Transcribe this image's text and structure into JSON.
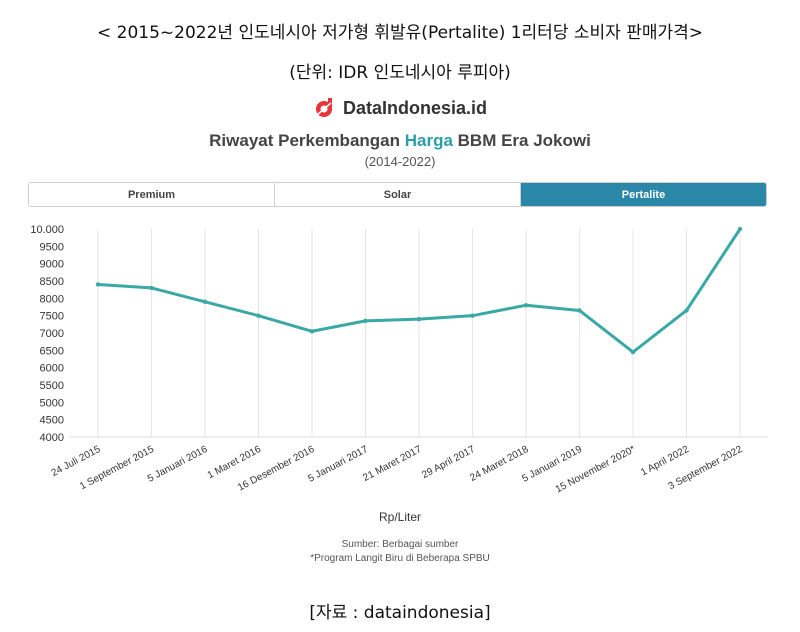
{
  "header": {
    "title": "< 2015~2022년 인도네시아 저가형 휘발유(Pertalite) 1리터당 소비자 판매가격>",
    "unit": "(단위: IDR 인도네시아 루피아)"
  },
  "brand": {
    "name": "DataIndonesia.id",
    "logo_icon": "dataindonesia-logo-icon",
    "color": "#e8333a"
  },
  "chart_header": {
    "title_pre": "Riwayat Perkembangan ",
    "title_highlight": "Harga",
    "title_post": " BBM Era Jokowi",
    "subtitle": "(2014-2022)"
  },
  "tabs": [
    {
      "label": "Premium",
      "active": false
    },
    {
      "label": "Solar",
      "active": false
    },
    {
      "label": "Pertalite",
      "active": true
    }
  ],
  "colors": {
    "line": "#3aa8a4",
    "active_tab": "#2b87a8",
    "highlight": "#2a9fa8"
  },
  "chart_data": {
    "type": "line",
    "categories": [
      "24 Juli 2015",
      "1 September 2015",
      "5 Januari 2016",
      "1 Maret 2016",
      "16 Desember 2016",
      "5 Januari 2017",
      "21 Maret 2017",
      "29 April 2017",
      "24 Maret 2018",
      "5 Januari 2019",
      "15 November 2020*",
      "1 April 2022",
      "3 September 2022"
    ],
    "series": [
      {
        "values": [
          8400,
          8300,
          7900,
          7500,
          7050,
          7350,
          7400,
          7500,
          7800,
          7650,
          6450,
          7650,
          10000
        ]
      }
    ],
    "yticks": [
      "4000",
      "4500",
      "5000",
      "5500",
      "6000",
      "6500",
      "7000",
      "7500",
      "8000",
      "8500",
      "9000",
      "9500",
      "10.000"
    ],
    "ylim": [
      4000,
      10000
    ],
    "xlabel": "Rp/Liter",
    "grid": "vertical"
  },
  "footer": {
    "source": "Sumber: Berbagai sumber",
    "note": "*Program Langit Biru di Beberapa SPBU",
    "credit": "[자료 : dataindonesia]"
  }
}
